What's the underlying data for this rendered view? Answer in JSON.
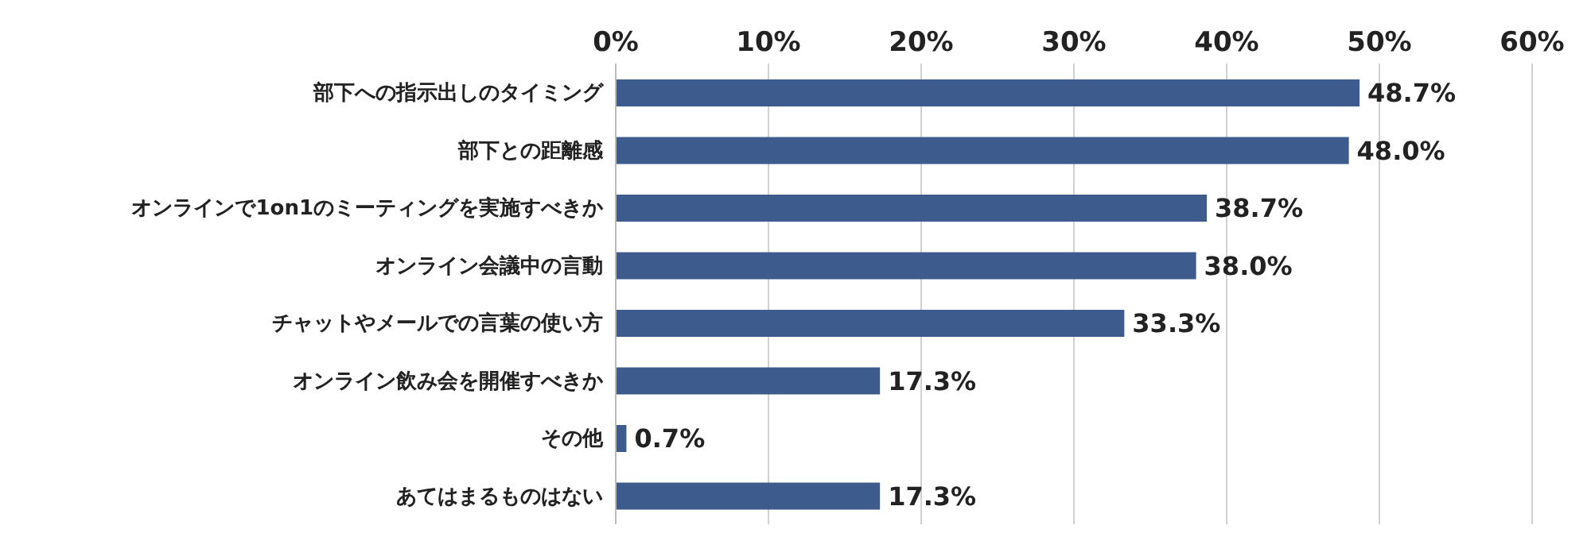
{
  "chart_data": {
    "type": "bar",
    "orientation": "horizontal",
    "categories": [
      "部下への指示出しのタイミング",
      "部下との距離感",
      "オンラインで1on1のミーティングを実施すべきか",
      "オンライン会議中の言動",
      "チャットやメールでの言葉の使い方",
      "オンライン飲み会を開催すべきか",
      "その他",
      "あてはまるものはない"
    ],
    "values": [
      48.7,
      48.0,
      38.7,
      38.0,
      33.3,
      17.3,
      0.7,
      17.3
    ],
    "value_labels": [
      "48.7%",
      "48.0%",
      "38.7%",
      "38.0%",
      "33.3%",
      "17.3%",
      "0.7%",
      "17.3%"
    ],
    "color": "#3e5b8e",
    "xlim": [
      0,
      60
    ],
    "xticks": [
      {
        "value": 0,
        "label": "0%"
      },
      {
        "value": 10,
        "label": "10%"
      },
      {
        "value": 20,
        "label": "20%"
      },
      {
        "value": 30,
        "label": "30%"
      },
      {
        "value": 40,
        "label": "40%"
      },
      {
        "value": 50,
        "label": "50%"
      },
      {
        "value": 60,
        "label": "60%"
      }
    ],
    "grid": "x"
  }
}
